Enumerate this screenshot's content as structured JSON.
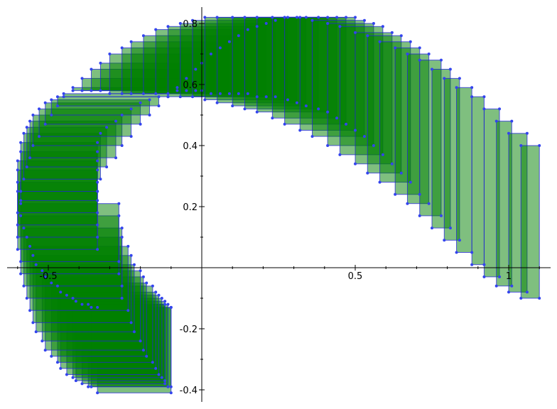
{
  "chart_data": {
    "type": "scatter",
    "title": "",
    "xlabel": "",
    "ylabel": "",
    "xlim": [
      -0.64,
      1.14
    ],
    "ylim": [
      -0.44,
      0.85
    ],
    "grid": false,
    "x_ticks": [
      -0.5,
      0.5,
      1
    ],
    "x_tick_labels": [
      "-0.5",
      "0.5",
      "1"
    ],
    "y_ticks": [
      -0.4,
      -0.2,
      0.2,
      0.4,
      0.6,
      0.8
    ],
    "y_tick_labels": [
      "-0.4",
      "-0.2",
      "0.2",
      "0.4",
      "0.6",
      "0.8"
    ],
    "colors": {
      "fill": "#008000",
      "edge": "#0000ff",
      "vertex": "#0000ff"
    },
    "series": [
      {
        "description_fields": [
          "x0",
          "y0",
          "x1",
          "y1"
        ],
        "rectangles": [
          [
            -0.34,
            -0.41,
            -0.1,
            -0.13
          ],
          [
            -0.36,
            -0.39,
            -0.1,
            -0.13
          ],
          [
            -0.37,
            -0.39,
            -0.11,
            -0.12
          ],
          [
            -0.39,
            -0.38,
            -0.12,
            -0.12
          ],
          [
            -0.41,
            -0.37,
            -0.12,
            -0.11
          ],
          [
            -0.42,
            -0.36,
            -0.13,
            -0.1
          ],
          [
            -0.44,
            -0.35,
            -0.14,
            -0.09
          ],
          [
            -0.46,
            -0.33,
            -0.15,
            -0.08
          ],
          [
            -0.47,
            -0.31,
            -0.16,
            -0.06
          ],
          [
            -0.49,
            -0.29,
            -0.18,
            -0.05
          ],
          [
            -0.51,
            -0.27,
            -0.19,
            -0.03
          ],
          [
            -0.52,
            -0.24,
            -0.2,
            -0.01
          ],
          [
            -0.54,
            -0.21,
            -0.22,
            0.01
          ],
          [
            -0.55,
            -0.18,
            -0.23,
            0.04
          ],
          [
            -0.56,
            -0.14,
            -0.24,
            0.07
          ],
          [
            -0.57,
            -0.1,
            -0.26,
            0.1
          ],
          [
            -0.58,
            -0.06,
            -0.26,
            0.13
          ],
          [
            -0.59,
            -0.02,
            -0.27,
            0.17
          ],
          [
            -0.59,
            0.02,
            -0.27,
            0.21
          ],
          [
            -0.6,
            0.06,
            -0.34,
            0.25
          ],
          [
            -0.6,
            0.1,
            -0.34,
            0.28
          ],
          [
            -0.6,
            0.14,
            -0.34,
            0.32
          ],
          [
            -0.6,
            0.18,
            -0.34,
            0.35
          ],
          [
            -0.59,
            0.22,
            -0.34,
            0.38
          ],
          [
            -0.59,
            0.25,
            -0.34,
            0.41
          ],
          [
            -0.58,
            0.29,
            -0.33,
            0.44
          ],
          [
            -0.57,
            0.33,
            -0.31,
            0.46
          ],
          [
            -0.56,
            0.36,
            -0.28,
            0.48
          ],
          [
            -0.55,
            0.4,
            -0.26,
            0.5
          ],
          [
            -0.53,
            0.43,
            -0.23,
            0.52
          ],
          [
            -0.51,
            0.47,
            -0.2,
            0.54
          ],
          [
            -0.49,
            0.5,
            -0.17,
            0.55
          ],
          [
            -0.47,
            0.53,
            -0.14,
            0.56
          ],
          [
            -0.45,
            0.56,
            -0.11,
            0.57
          ],
          [
            -0.42,
            0.59,
            -0.08,
            0.58
          ],
          [
            -0.39,
            0.62,
            -0.05,
            0.58
          ],
          [
            -0.36,
            0.65,
            -0.02,
            0.58
          ],
          [
            -0.33,
            0.67,
            0.0,
            0.58
          ],
          [
            -0.3,
            0.7,
            0.03,
            0.57
          ],
          [
            -0.26,
            0.72,
            0.06,
            0.57
          ],
          [
            -0.23,
            0.74,
            0.09,
            0.57
          ],
          [
            -0.19,
            0.76,
            0.12,
            0.57
          ],
          [
            -0.15,
            0.78,
            0.15,
            0.57
          ],
          [
            -0.11,
            0.79,
            0.18,
            0.56
          ],
          [
            -0.07,
            0.8,
            0.21,
            0.56
          ],
          [
            -0.03,
            0.81,
            0.24,
            0.56
          ],
          [
            0.01,
            0.82,
            0.28,
            0.55
          ],
          [
            0.05,
            0.82,
            0.31,
            0.54
          ],
          [
            0.1,
            0.82,
            0.34,
            0.53
          ],
          [
            0.14,
            0.82,
            0.38,
            0.52
          ],
          [
            0.18,
            0.82,
            0.41,
            0.51
          ],
          [
            0.23,
            0.82,
            0.44,
            0.49
          ],
          [
            0.27,
            0.82,
            0.47,
            0.47
          ],
          [
            0.32,
            0.82,
            0.5,
            0.45
          ],
          [
            0.36,
            0.81,
            0.53,
            0.43
          ],
          [
            0.41,
            0.8,
            0.56,
            0.4
          ],
          [
            0.45,
            0.79,
            0.59,
            0.37
          ],
          [
            0.5,
            0.77,
            0.62,
            0.34
          ],
          [
            0.54,
            0.76,
            0.65,
            0.31
          ],
          [
            0.58,
            0.74,
            0.68,
            0.28
          ],
          [
            0.63,
            0.72,
            0.71,
            0.24
          ],
          [
            0.67,
            0.7,
            0.74,
            0.21
          ],
          [
            0.71,
            0.68,
            0.78,
            0.17
          ],
          [
            0.75,
            0.65,
            0.81,
            0.13
          ],
          [
            0.79,
            0.62,
            0.84,
            0.09
          ],
          [
            0.83,
            0.59,
            0.88,
            0.05
          ],
          [
            0.88,
            0.56,
            0.92,
            0.01
          ],
          [
            0.92,
            0.52,
            0.97,
            -0.03
          ],
          [
            0.96,
            0.48,
            1.01,
            -0.06
          ],
          [
            1.0,
            0.44,
            1.06,
            -0.08
          ],
          [
            1.04,
            0.4,
            1.1,
            -0.1
          ]
        ]
      }
    ]
  }
}
